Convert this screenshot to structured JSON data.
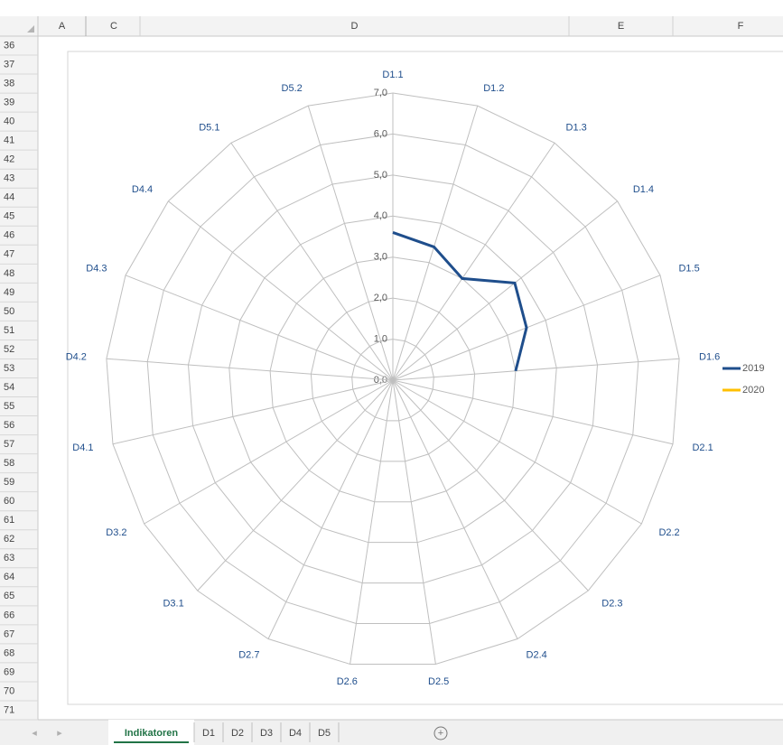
{
  "spreadsheet": {
    "columns": [
      "A",
      "C",
      "D",
      "E",
      "F"
    ],
    "rows": [
      36,
      37,
      38,
      39,
      40,
      41,
      42,
      43,
      44,
      45,
      46,
      47,
      48,
      49,
      50,
      51,
      52,
      53,
      54,
      55,
      56,
      57,
      58,
      59,
      60,
      61,
      62,
      63,
      64,
      65,
      66,
      67,
      68,
      69,
      70,
      71
    ],
    "tabs": [
      "Indikatoren",
      "D1",
      "D2",
      "D3",
      "D4",
      "D5"
    ]
  },
  "chart_data": {
    "type": "radar",
    "categories": [
      "D1.1",
      "D1.2",
      "D1.3",
      "D1.4",
      "D1.5",
      "D1.6",
      "D2.1",
      "D2.2",
      "D2.3",
      "D2.4",
      "D2.5",
      "D2.6",
      "D2.7",
      "D3.1",
      "D3.2",
      "D4.1",
      "D4.2",
      "D4.3",
      "D4.4",
      "D5.1",
      "D5.2"
    ],
    "series": [
      {
        "name": "2019",
        "color": "#1f4e8c",
        "values": [
          3.6,
          3.4,
          3.0,
          3.8,
          3.5,
          3.0,
          null,
          null,
          null,
          null,
          null,
          null,
          null,
          null,
          null,
          null,
          null,
          null,
          null,
          null,
          null
        ]
      },
      {
        "name": "2020",
        "color": "#ffc000",
        "values": [
          null,
          null,
          null,
          null,
          null,
          null,
          null,
          null,
          null,
          null,
          null,
          null,
          null,
          null,
          null,
          null,
          null,
          null,
          null,
          null,
          null
        ]
      }
    ],
    "ylim": [
      0,
      7
    ],
    "yticks": [
      {
        "value": 0,
        "label": "0,0"
      },
      {
        "value": 1,
        "label": "1,0"
      },
      {
        "value": 2,
        "label": "2,0"
      },
      {
        "value": 3,
        "label": "3,0"
      },
      {
        "value": 4,
        "label": "4,0"
      },
      {
        "value": 5,
        "label": "5,0"
      },
      {
        "value": 6,
        "label": "6,0"
      },
      {
        "value": 7,
        "label": "7,0"
      }
    ],
    "grid": true,
    "legend": "right"
  }
}
